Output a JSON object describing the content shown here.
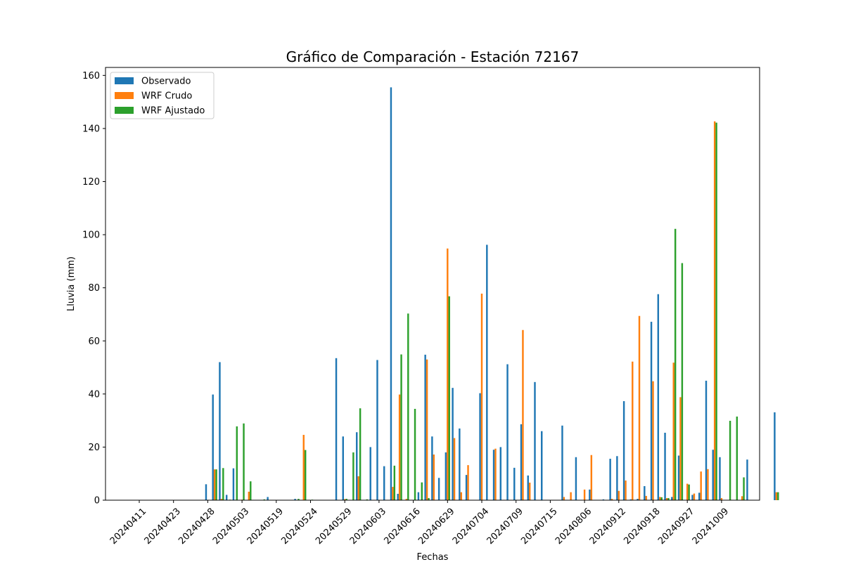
{
  "chart_data": {
    "type": "bar",
    "title": "Gráfico de Comparación - Estación 72167",
    "xlabel": "Fechas",
    "ylabel": "Lluvia (mm)",
    "ylim": [
      0,
      163
    ],
    "yticks": [
      0,
      20,
      40,
      60,
      80,
      100,
      120,
      140,
      160
    ],
    "xtick_labels": [
      "20240411",
      "20240423",
      "20240428",
      "20240503",
      "20240519",
      "20240524",
      "20240529",
      "20240603",
      "20240616",
      "20240629",
      "20240704",
      "20240709",
      "20240715",
      "20240806",
      "20240912",
      "20240918",
      "20240927",
      "20241009"
    ],
    "xtick_every": 5,
    "legend_position": "upper-left",
    "colors": {
      "observado": "#1f77b4",
      "crudo": "#ff7f0e",
      "ajustado": "#2ca02c"
    },
    "series": [
      {
        "name": "Observado",
        "color": "#1f77b4",
        "values": [
          0,
          0,
          0,
          0,
          0,
          0,
          0,
          0,
          0,
          0,
          6,
          39.8,
          52,
          2,
          12,
          0,
          0,
          0,
          0,
          1.2,
          0,
          0,
          0,
          0.5,
          0,
          0,
          0,
          0,
          0,
          53.5,
          24,
          0,
          25.6,
          0,
          20,
          52.8,
          12.8,
          155.5,
          2.4,
          0,
          0,
          3,
          54.8,
          24,
          8.4,
          18,
          42.3,
          27,
          9.5,
          0,
          40.3,
          96.2,
          19,
          20,
          51.2,
          12.2,
          28.6,
          9.3,
          44.5,
          26,
          0,
          0,
          28.1,
          0,
          16.2,
          0,
          4,
          0,
          0.3,
          15.6,
          16.6,
          37.3,
          0.3,
          0.5,
          5.3,
          67.2,
          77.6,
          25.4,
          1.2,
          16.8,
          0,
          2,
          2.8,
          45,
          19,
          16.2,
          0,
          0,
          0,
          15.3,
          0,
          0,
          0,
          33.1
        ]
      },
      {
        "name": "WRF Crudo",
        "color": "#ff7f0e",
        "values": [
          0,
          0,
          0,
          0,
          0,
          0,
          0,
          0,
          0,
          0,
          0,
          11.6,
          0.5,
          0,
          0,
          0.2,
          3.2,
          0,
          0,
          0,
          0,
          0,
          0,
          0,
          24.6,
          0,
          0,
          0,
          0,
          0,
          0.4,
          0,
          9,
          0,
          0,
          0,
          0,
          5,
          39.8,
          0.5,
          0,
          0,
          53,
          17.2,
          0,
          94.8,
          23.4,
          3,
          13.2,
          0,
          77.8,
          0,
          19.4,
          0,
          0,
          0,
          64.1,
          6.6,
          0,
          0,
          0,
          0,
          1.2,
          3,
          0,
          4,
          17,
          0,
          0,
          0.5,
          3.5,
          7.4,
          52.2,
          69.4,
          1.6,
          44.8,
          1.2,
          0.8,
          51.8,
          38.8,
          6.2,
          2.5,
          10.8,
          11.7,
          142.7,
          0.8,
          0,
          0,
          1.5,
          0,
          0,
          0,
          0,
          3
        ]
      },
      {
        "name": "WRF Ajustado",
        "color": "#2ca02c",
        "values": [
          0,
          0,
          0,
          0,
          0,
          0,
          0,
          0,
          0,
          0,
          0,
          11.6,
          12.1,
          0.2,
          27.8,
          28.9,
          7.1,
          0,
          0.3,
          0,
          0,
          0,
          0,
          0.5,
          18.9,
          0.2,
          0,
          0,
          0,
          0,
          0.5,
          18,
          34.6,
          0.3,
          0,
          0,
          0,
          13,
          54.9,
          70.3,
          34.4,
          6.7,
          0.8,
          0,
          0,
          76.8,
          0,
          0,
          0,
          0,
          0,
          0,
          0,
          0,
          0,
          0,
          0,
          0,
          0,
          0,
          0,
          0,
          0,
          0,
          0,
          0,
          0,
          0,
          0,
          0,
          0,
          0,
          0,
          0,
          0,
          0,
          1.1,
          0.8,
          102.2,
          89.3,
          5.9,
          0,
          0,
          0,
          142.2,
          0,
          29.9,
          31.5,
          8.6,
          0,
          0,
          0,
          0,
          3
        ]
      }
    ]
  }
}
